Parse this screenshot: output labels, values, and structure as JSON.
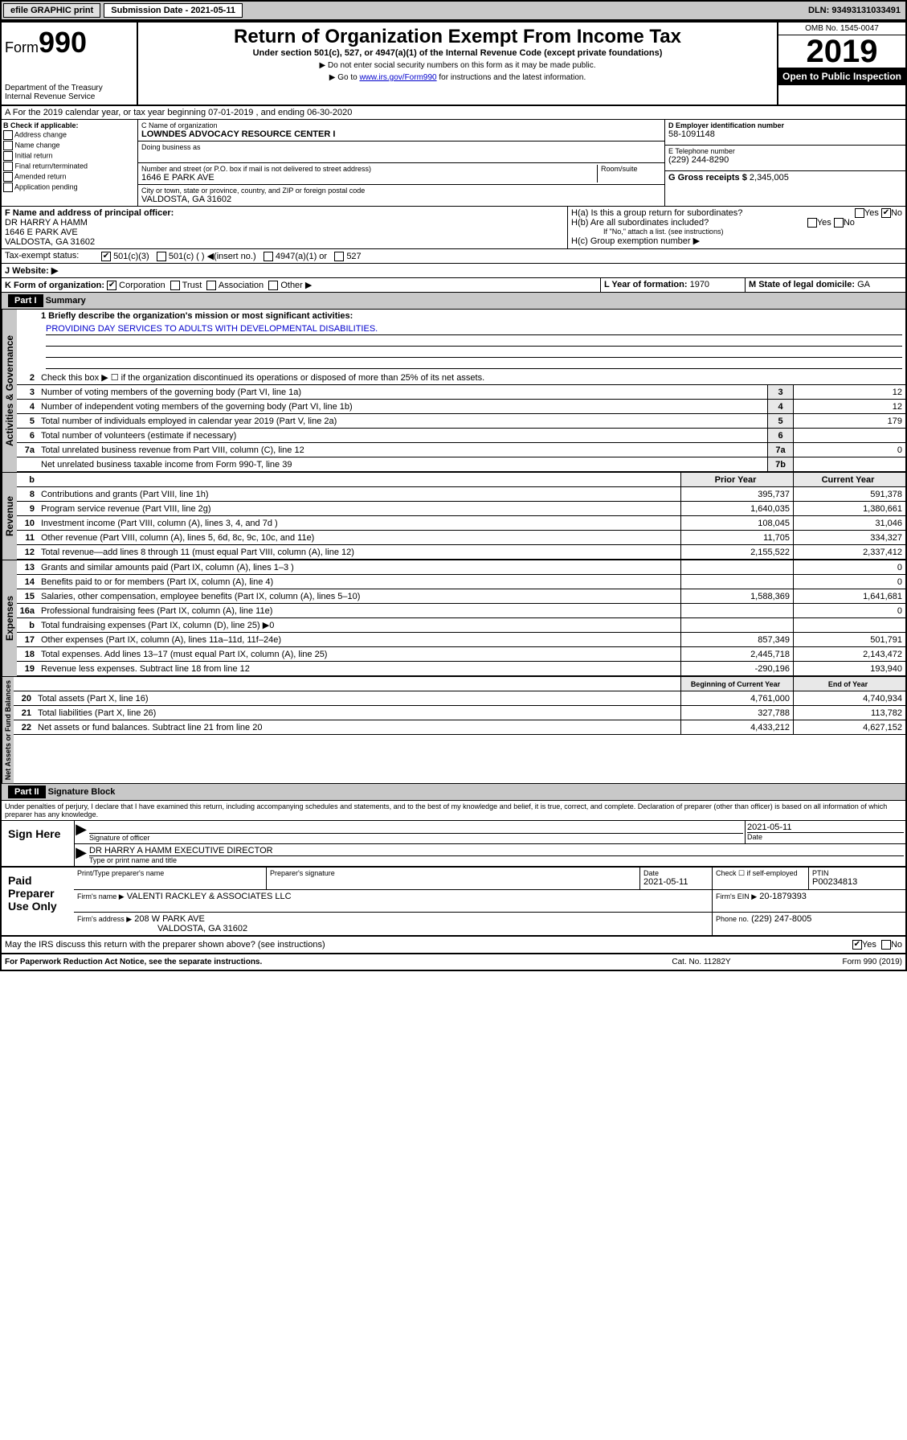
{
  "topbar": {
    "efile": "efile GRAPHIC print",
    "sub_label": "Submission Date - 2021-05-11",
    "dln": "DLN: 93493131033491"
  },
  "header": {
    "form_prefix": "Form",
    "form_num": "990",
    "title": "Return of Organization Exempt From Income Tax",
    "subtitle": "Under section 501(c), 527, or 4947(a)(1) of the Internal Revenue Code (except private foundations)",
    "note1": "▶ Do not enter social security numbers on this form as it may be made public.",
    "note2_pre": "▶ Go to ",
    "note2_link": "www.irs.gov/Form990",
    "note2_post": " for instructions and the latest information.",
    "dept1": "Department of the Treasury",
    "dept2": "Internal Revenue Service",
    "omb": "OMB No. 1545-0047",
    "year": "2019",
    "open": "Open to Public Inspection"
  },
  "rowA": "A For the 2019 calendar year, or tax year beginning 07-01-2019    , and ending 06-30-2020",
  "colB": {
    "title": "B Check if applicable:",
    "opts": [
      "Address change",
      "Name change",
      "Initial return",
      "Final return/terminated",
      "Amended return",
      "Application pending"
    ]
  },
  "colC": {
    "name_label": "C Name of organization",
    "name": "LOWNDES ADVOCACY RESOURCE CENTER I",
    "dba_label": "Doing business as",
    "addr_label": "Number and street (or P.O. box if mail is not delivered to street address)",
    "addr": "1646 E PARK AVE",
    "room_label": "Room/suite",
    "city_label": "City or town, state or province, country, and ZIP or foreign postal code",
    "city": "VALDOSTA, GA  31602"
  },
  "colD": {
    "ein_label": "D Employer identification number",
    "ein": "58-1091148",
    "tel_label": "E Telephone number",
    "tel": "(229) 244-8290",
    "gross_label": "G Gross receipts $",
    "gross": "2,345,005"
  },
  "colF": {
    "label": "F  Name and address of principal officer:",
    "name": "DR HARRY A HAMM",
    "addr1": "1646 E PARK AVE",
    "addr2": "VALDOSTA, GA  31602"
  },
  "colH": {
    "ha": "H(a)  Is this a group return for subordinates?",
    "hb": "H(b)  Are all subordinates included?",
    "hb_note": "If \"No,\" attach a list. (see instructions)",
    "hc": "H(c)  Group exemption number ▶"
  },
  "taxStatus": {
    "label": "Tax-exempt status:",
    "opts": [
      "501(c)(3)",
      "501(c) (  ) ◀(insert no.)",
      "4947(a)(1) or",
      "527"
    ]
  },
  "website": {
    "label": "J    Website: ▶"
  },
  "rowK": {
    "k": "K Form of organization:",
    "opts": [
      "Corporation",
      "Trust",
      "Association",
      "Other ▶"
    ],
    "l_label": "L Year of formation:",
    "l_val": "1970",
    "m_label": "M State of legal domicile:",
    "m_val": "GA"
  },
  "part1": {
    "hdr": "Part I",
    "title": "Summary",
    "q1": "1  Briefly describe the organization's mission or most significant activities:",
    "mission": "PROVIDING DAY SERVICES TO ADULTS WITH DEVELOPMENTAL DISABILITIES.",
    "q2": "Check this box ▶ ☐  if the organization discontinued its operations or disposed of more than 25% of its net assets.",
    "sections": {
      "gov": "Activities & Governance",
      "rev": "Revenue",
      "exp": "Expenses",
      "net": "Net Assets or Fund Balances"
    },
    "rows_gov": [
      {
        "n": "3",
        "d": "Number of voting members of the governing body (Part VI, line 1a)",
        "b": "3",
        "v": "12"
      },
      {
        "n": "4",
        "d": "Number of independent voting members of the governing body (Part VI, line 1b)",
        "b": "4",
        "v": "12"
      },
      {
        "n": "5",
        "d": "Total number of individuals employed in calendar year 2019 (Part V, line 2a)",
        "b": "5",
        "v": "179"
      },
      {
        "n": "6",
        "d": "Total number of volunteers (estimate if necessary)",
        "b": "6",
        "v": ""
      },
      {
        "n": "7a",
        "d": "Total unrelated business revenue from Part VIII, column (C), line 12",
        "b": "7a",
        "v": "0"
      },
      {
        "n": "",
        "d": "Net unrelated business taxable income from Form 990-T, line 39",
        "b": "7b",
        "v": ""
      }
    ],
    "col_hdrs": {
      "prior": "Prior Year",
      "current": "Current Year"
    },
    "rows_rev": [
      {
        "n": "8",
        "d": "Contributions and grants (Part VIII, line 1h)",
        "p": "395,737",
        "c": "591,378"
      },
      {
        "n": "9",
        "d": "Program service revenue (Part VIII, line 2g)",
        "p": "1,640,035",
        "c": "1,380,661"
      },
      {
        "n": "10",
        "d": "Investment income (Part VIII, column (A), lines 3, 4, and 7d )",
        "p": "108,045",
        "c": "31,046"
      },
      {
        "n": "11",
        "d": "Other revenue (Part VIII, column (A), lines 5, 6d, 8c, 9c, 10c, and 11e)",
        "p": "11,705",
        "c": "334,327"
      },
      {
        "n": "12",
        "d": "Total revenue—add lines 8 through 11 (must equal Part VIII, column (A), line 12)",
        "p": "2,155,522",
        "c": "2,337,412"
      }
    ],
    "rows_exp": [
      {
        "n": "13",
        "d": "Grants and similar amounts paid (Part IX, column (A), lines 1–3 )",
        "p": "",
        "c": "0"
      },
      {
        "n": "14",
        "d": "Benefits paid to or for members (Part IX, column (A), line 4)",
        "p": "",
        "c": "0"
      },
      {
        "n": "15",
        "d": "Salaries, other compensation, employee benefits (Part IX, column (A), lines 5–10)",
        "p": "1,588,369",
        "c": "1,641,681"
      },
      {
        "n": "16a",
        "d": "Professional fundraising fees (Part IX, column (A), line 11e)",
        "p": "",
        "c": "0"
      },
      {
        "n": "b",
        "d": "Total fundraising expenses (Part IX, column (D), line 25) ▶0",
        "p": "",
        "c": ""
      },
      {
        "n": "17",
        "d": "Other expenses (Part IX, column (A), lines 11a–11d, 11f–24e)",
        "p": "857,349",
        "c": "501,791"
      },
      {
        "n": "18",
        "d": "Total expenses. Add lines 13–17 (must equal Part IX, column (A), line 25)",
        "p": "2,445,718",
        "c": "2,143,472"
      },
      {
        "n": "19",
        "d": "Revenue less expenses. Subtract line 18 from line 12",
        "p": "-290,196",
        "c": "193,940"
      }
    ],
    "col_hdrs2": {
      "prior": "Beginning of Current Year",
      "current": "End of Year"
    },
    "rows_net": [
      {
        "n": "20",
        "d": "Total assets (Part X, line 16)",
        "p": "4,761,000",
        "c": "4,740,934"
      },
      {
        "n": "21",
        "d": "Total liabilities (Part X, line 26)",
        "p": "327,788",
        "c": "113,782"
      },
      {
        "n": "22",
        "d": "Net assets or fund balances. Subtract line 21 from line 20",
        "p": "4,433,212",
        "c": "4,627,152"
      }
    ]
  },
  "part2": {
    "hdr": "Part II",
    "title": "Signature Block",
    "perjury": "Under penalties of perjury, I declare that I have examined this return, including accompanying schedules and statements, and to the best of my knowledge and belief, it is true, correct, and complete. Declaration of preparer (other than officer) is based on all information of which preparer has any knowledge.",
    "sign_here": "Sign Here",
    "sig_officer": "Signature of officer",
    "sig_date": "2021-05-11",
    "date_label": "Date",
    "officer_name": "DR HARRY A HAMM  EXECUTIVE DIRECTOR",
    "type_label": "Type or print name and title",
    "paid": "Paid Preparer Use Only",
    "prep_name_label": "Print/Type preparer's name",
    "prep_sig_label": "Preparer's signature",
    "prep_date_label": "Date",
    "prep_date": "2021-05-11",
    "check_if": "Check ☐ if self-employed",
    "ptin_label": "PTIN",
    "ptin": "P00234813",
    "firm_name_label": "Firm's name    ▶",
    "firm_name": "VALENTI RACKLEY & ASSOCIATES LLC",
    "firm_ein_label": "Firm's EIN ▶",
    "firm_ein": "20-1879393",
    "firm_addr_label": "Firm's address ▶",
    "firm_addr": "208 W PARK AVE",
    "firm_city": "VALDOSTA, GA  31602",
    "phone_label": "Phone no.",
    "phone": "(229) 247-8005",
    "discuss": "May the IRS discuss this return with the preparer shown above? (see instructions)"
  },
  "footer": {
    "left": "For Paperwork Reduction Act Notice, see the separate instructions.",
    "mid": "Cat. No. 11282Y",
    "right": "Form 990 (2019)"
  }
}
